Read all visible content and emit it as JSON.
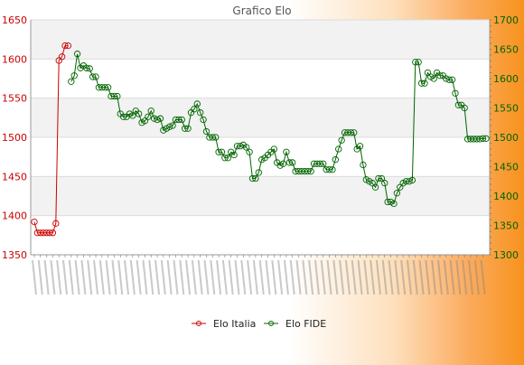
{
  "chart_data": {
    "type": "line",
    "title": "Grafico Elo",
    "xlabel": "",
    "ylabel_left": "",
    "ylabel_right": "",
    "ylim_left": [
      1350,
      1650
    ],
    "ylim_right": [
      1300,
      1700
    ],
    "yticks_left": [
      1350,
      1400,
      1450,
      1500,
      1550,
      1600,
      1650
    ],
    "yticks_right": [
      1300,
      1350,
      1400,
      1450,
      1500,
      1550,
      1600,
      1650,
      1700
    ],
    "grid": "horizontal bands",
    "legend_position": "bottom",
    "x_tick_labels": "dense overlapping rotated date labels (illegible)",
    "series": [
      {
        "name": "Elo Italia",
        "axis": "left",
        "color": "#cc0000",
        "points": [
          [
            0,
            1392
          ],
          [
            1,
            1378
          ],
          [
            2,
            1378
          ],
          [
            3,
            1378
          ],
          [
            4,
            1378
          ],
          [
            5,
            1378
          ],
          [
            6,
            1378
          ],
          [
            7,
            1390
          ],
          [
            8,
            1598
          ],
          [
            9,
            1603
          ],
          [
            10,
            1617
          ],
          [
            11,
            1617
          ]
        ]
      },
      {
        "name": "Elo FIDE",
        "axis": "right",
        "color": "#006400",
        "points": [
          [
            12,
            1595
          ],
          [
            13,
            1605
          ],
          [
            14,
            1642
          ],
          [
            15,
            1618
          ],
          [
            16,
            1622
          ],
          [
            17,
            1618
          ],
          [
            18,
            1617
          ],
          [
            19,
            1603
          ],
          [
            20,
            1603
          ],
          [
            21,
            1585
          ],
          [
            22,
            1585
          ],
          [
            23,
            1585
          ],
          [
            24,
            1585
          ],
          [
            25,
            1570
          ],
          [
            26,
            1570
          ],
          [
            27,
            1570
          ],
          [
            28,
            1540
          ],
          [
            29,
            1535
          ],
          [
            30,
            1535
          ],
          [
            31,
            1540
          ],
          [
            32,
            1537
          ],
          [
            33,
            1545
          ],
          [
            34,
            1540
          ],
          [
            35,
            1525
          ],
          [
            36,
            1528
          ],
          [
            37,
            1535
          ],
          [
            38,
            1545
          ],
          [
            39,
            1532
          ],
          [
            40,
            1530
          ],
          [
            41,
            1532
          ],
          [
            42,
            1512
          ],
          [
            43,
            1515
          ],
          [
            44,
            1518
          ],
          [
            45,
            1520
          ],
          [
            46,
            1530
          ],
          [
            47,
            1530
          ],
          [
            48,
            1530
          ],
          [
            49,
            1515
          ],
          [
            50,
            1515
          ],
          [
            51,
            1542
          ],
          [
            52,
            1548
          ],
          [
            53,
            1557
          ],
          [
            54,
            1542
          ],
          [
            55,
            1530
          ],
          [
            56,
            1510
          ],
          [
            57,
            1500
          ],
          [
            58,
            1500
          ],
          [
            59,
            1500
          ],
          [
            60,
            1475
          ],
          [
            61,
            1475
          ],
          [
            62,
            1465
          ],
          [
            63,
            1465
          ],
          [
            64,
            1475
          ],
          [
            65,
            1470
          ],
          [
            66,
            1485
          ],
          [
            67,
            1485
          ],
          [
            68,
            1487
          ],
          [
            69,
            1483
          ],
          [
            70,
            1475
          ],
          [
            71,
            1430
          ],
          [
            72,
            1430
          ],
          [
            73,
            1440
          ],
          [
            74,
            1462
          ],
          [
            75,
            1465
          ],
          [
            76,
            1470
          ],
          [
            77,
            1475
          ],
          [
            78,
            1480
          ],
          [
            79,
            1457
          ],
          [
            80,
            1452
          ],
          [
            81,
            1455
          ],
          [
            82,
            1475
          ],
          [
            83,
            1457
          ],
          [
            84,
            1457
          ],
          [
            85,
            1442
          ],
          [
            86,
            1442
          ],
          [
            87,
            1442
          ],
          [
            88,
            1442
          ],
          [
            89,
            1442
          ],
          [
            90,
            1442
          ],
          [
            91,
            1455
          ],
          [
            92,
            1455
          ],
          [
            93,
            1455
          ],
          [
            94,
            1455
          ],
          [
            95,
            1445
          ],
          [
            96,
            1445
          ],
          [
            97,
            1445
          ],
          [
            98,
            1462
          ],
          [
            99,
            1480
          ],
          [
            100,
            1495
          ],
          [
            101,
            1508
          ],
          [
            102,
            1508
          ],
          [
            103,
            1508
          ],
          [
            104,
            1508
          ],
          [
            105,
            1480
          ],
          [
            106,
            1485
          ],
          [
            107,
            1453
          ],
          [
            108,
            1428
          ],
          [
            109,
            1425
          ],
          [
            110,
            1422
          ],
          [
            111,
            1415
          ],
          [
            112,
            1430
          ],
          [
            113,
            1430
          ],
          [
            114,
            1422
          ],
          [
            115,
            1390
          ],
          [
            116,
            1390
          ],
          [
            117,
            1387
          ],
          [
            118,
            1405
          ],
          [
            119,
            1415
          ],
          [
            120,
            1422
          ],
          [
            121,
            1425
          ],
          [
            122,
            1425
          ],
          [
            123,
            1427
          ],
          [
            124,
            1628
          ],
          [
            125,
            1628
          ],
          [
            126,
            1592
          ],
          [
            127,
            1592
          ],
          [
            128,
            1610
          ],
          [
            129,
            1603
          ],
          [
            130,
            1600
          ],
          [
            131,
            1610
          ],
          [
            132,
            1605
          ],
          [
            133,
            1605
          ],
          [
            134,
            1600
          ],
          [
            135,
            1598
          ],
          [
            136,
            1598
          ],
          [
            137,
            1575
          ],
          [
            138,
            1555
          ],
          [
            139,
            1555
          ],
          [
            140,
            1550
          ],
          [
            141,
            1497
          ],
          [
            142,
            1497
          ],
          [
            143,
            1497
          ],
          [
            144,
            1497
          ],
          [
            145,
            1497
          ],
          [
            146,
            1498
          ],
          [
            147,
            1498
          ]
        ]
      }
    ]
  }
}
